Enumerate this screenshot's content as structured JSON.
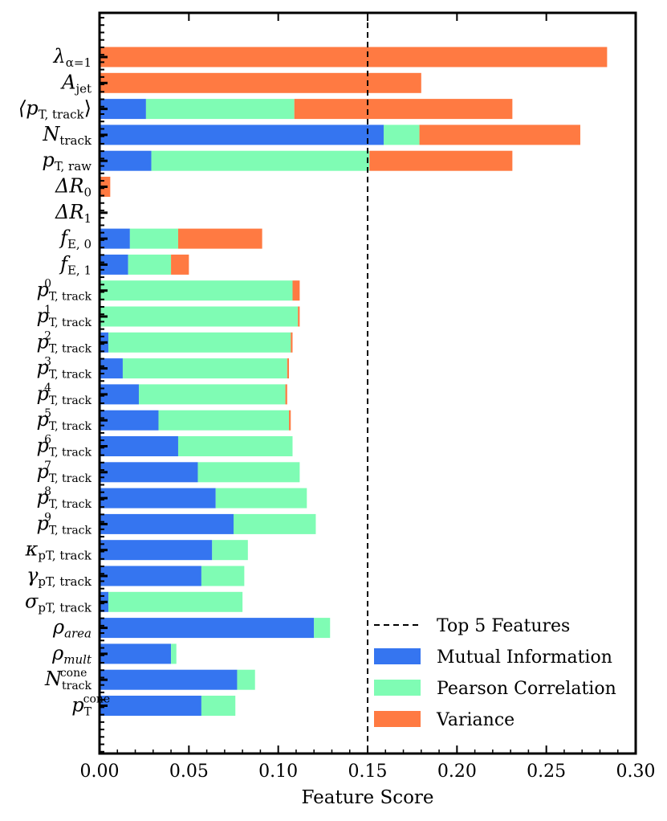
{
  "chart_data": {
    "type": "bar",
    "orientation": "horizontal",
    "stacked": true,
    "xlabel": "Feature Score",
    "xlim": [
      0,
      0.3
    ],
    "xticks": [
      "0.00",
      "0.05",
      "0.10",
      "0.15",
      "0.20",
      "0.25",
      "0.30"
    ],
    "grid": false,
    "legend_position": "bottom-right",
    "threshold": {
      "value": 0.15,
      "label": "Top 5 Features",
      "style": "dashed",
      "color": "#000000"
    },
    "categories": [
      {
        "main": "λ",
        "sub": "α=1"
      },
      {
        "main": "A",
        "sub": "jet"
      },
      {
        "main": "⟨p",
        "sub": "T, track",
        "suffix": "⟩"
      },
      {
        "main": "N",
        "sub": "track"
      },
      {
        "main": "p",
        "sub": "T, raw"
      },
      {
        "main": "ΔR",
        "sub": "0"
      },
      {
        "main": "ΔR",
        "sub": "1"
      },
      {
        "main": "f",
        "sub": "E, 0"
      },
      {
        "main": "f",
        "sub": "E, 1"
      },
      {
        "main": "p",
        "sub": "T, track",
        "sup": "0"
      },
      {
        "main": "p",
        "sub": "T, track",
        "sup": "1"
      },
      {
        "main": "p",
        "sub": "T, track",
        "sup": "2"
      },
      {
        "main": "p",
        "sub": "T, track",
        "sup": "3"
      },
      {
        "main": "p",
        "sub": "T, track",
        "sup": "4"
      },
      {
        "main": "p",
        "sub": "T, track",
        "sup": "5"
      },
      {
        "main": "p",
        "sub": "T, track",
        "sup": "6"
      },
      {
        "main": "p",
        "sub": "T, track",
        "sup": "7"
      },
      {
        "main": "p",
        "sub": "T, track",
        "sup": "8"
      },
      {
        "main": "p",
        "sub": "T, track",
        "sup": "9"
      },
      {
        "main": "κ",
        "sub": "pT, track"
      },
      {
        "main": "γ",
        "sub": "pT, track"
      },
      {
        "main": "σ",
        "sub": "pT, track"
      },
      {
        "main": "ρ",
        "sub": "area"
      },
      {
        "main": "ρ",
        "sub": "mult"
      },
      {
        "main": "N",
        "sub": "track",
        "sup": "cone"
      },
      {
        "main": "p",
        "sub": "T",
        "sup": "cone"
      }
    ],
    "series": [
      {
        "name": "Mutual Information",
        "color": "#3575f0",
        "values": [
          0,
          0,
          0.026,
          0.159,
          0.029,
          0,
          0,
          0.017,
          0.016,
          0,
          0,
          0.005,
          0.013,
          0.022,
          0.033,
          0.044,
          0.055,
          0.065,
          0.075,
          0.063,
          0.057,
          0.005,
          0.12,
          0.04,
          0.077,
          0.057
        ]
      },
      {
        "name": "Pearson Correlation",
        "color": "#7ffcb4",
        "values": [
          0,
          0,
          0.083,
          0.02,
          0.122,
          0,
          0,
          0.027,
          0.024,
          0.108,
          0.111,
          0.102,
          0.092,
          0.082,
          0.073,
          0.064,
          0.057,
          0.051,
          0.046,
          0.02,
          0.024,
          0.075,
          0.009,
          0.003,
          0.01,
          0.019
        ]
      },
      {
        "name": "Variance",
        "color": "#ff7a42",
        "values": [
          0.284,
          0.18,
          0.122,
          0.09,
          0.08,
          0.006,
          0,
          0.047,
          0.01,
          0.004,
          0.001,
          0.001,
          0.001,
          0.001,
          0.001,
          0,
          0,
          0,
          0,
          0,
          0,
          0,
          0,
          0,
          0,
          0
        ]
      }
    ]
  }
}
